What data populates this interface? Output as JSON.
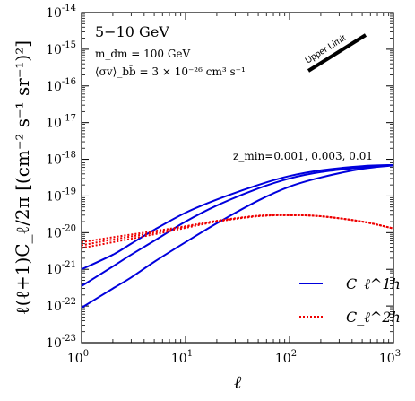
{
  "chart_data": {
    "type": "line",
    "title": "5−10 GeV",
    "xlabel": "ℓ",
    "ylabel": "ℓ(ℓ+1)C_ℓ/2π [(cm⁻² s⁻¹ sr⁻¹)²]",
    "xscale": "log",
    "yscale": "log",
    "xlim": [
      1,
      1000
    ],
    "ylim": [
      1e-23,
      1e-14
    ],
    "x_ticks": [
      {
        "value": 1,
        "base": "10",
        "exp": "0"
      },
      {
        "value": 10,
        "base": "10",
        "exp": "1"
      },
      {
        "value": 100,
        "base": "10",
        "exp": "2"
      },
      {
        "value": 1000,
        "base": "10",
        "exp": "3"
      }
    ],
    "y_ticks": [
      {
        "value": 1e-23,
        "base": "10",
        "exp": "-23"
      },
      {
        "value": 1e-22,
        "base": "10",
        "exp": "-22"
      },
      {
        "value": 1e-21,
        "base": "10",
        "exp": "-21"
      },
      {
        "value": 1e-20,
        "base": "10",
        "exp": "-20"
      },
      {
        "value": 1e-19,
        "base": "10",
        "exp": "-19"
      },
      {
        "value": 1e-18,
        "base": "10",
        "exp": "-18"
      },
      {
        "value": 1e-17,
        "base": "10",
        "exp": "-17"
      },
      {
        "value": 1e-16,
        "base": "10",
        "exp": "-16"
      },
      {
        "value": 1e-15,
        "base": "10",
        "exp": "-15"
      },
      {
        "value": 1e-14,
        "base": "10",
        "exp": "-14"
      }
    ],
    "annotations": {
      "mass": "m_dm = 100 GeV",
      "cross_section": "⟨σv⟩_bb̄ = 3 × 10⁻²⁶ cm³ s⁻¹",
      "zmin": "z_min=0.001, 0.003, 0.01",
      "upper_limit": "Upper Limit"
    },
    "legend": {
      "placement": "bottom-right",
      "entries": [
        {
          "label": "C_ℓ^1h",
          "color": "#0000dd",
          "style": "solid"
        },
        {
          "label": "C_ℓ^2h",
          "color": "#ee0000",
          "style": "dotted"
        }
      ]
    },
    "series": [
      {
        "group": "1h",
        "color": "#0000dd",
        "style": "solid",
        "x": [
          1,
          2,
          3,
          5,
          10,
          20,
          50,
          100,
          200,
          500,
          1000
        ],
        "y": [
          1e-21,
          2.5e-21,
          5e-21,
          1.2e-20,
          3.5e-20,
          8e-20,
          2e-19,
          3.5e-19,
          5e-19,
          6.5e-19,
          7e-19
        ]
      },
      {
        "group": "1h",
        "color": "#0000dd",
        "style": "solid",
        "x": [
          1,
          2,
          3,
          5,
          10,
          20,
          50,
          100,
          200,
          500,
          1000
        ],
        "y": [
          3.5e-22,
          1.2e-21,
          2.5e-21,
          6e-21,
          2e-20,
          5.5e-20,
          1.6e-19,
          3e-19,
          4.5e-19,
          6e-19,
          7e-19
        ]
      },
      {
        "group": "1h",
        "color": "#0000dd",
        "style": "solid",
        "x": [
          1,
          2,
          3,
          5,
          10,
          20,
          50,
          100,
          200,
          500,
          1000
        ],
        "y": [
          9e-23,
          3e-22,
          6e-22,
          1.6e-21,
          5.5e-21,
          1.8e-20,
          7.5e-20,
          1.8e-19,
          3.2e-19,
          5.5e-19,
          6.8e-19
        ]
      },
      {
        "group": "2h",
        "color": "#ee0000",
        "style": "dotted",
        "x": [
          1,
          2,
          5,
          10,
          20,
          50,
          100,
          200,
          500,
          1000
        ],
        "y": [
          5.5e-21,
          7.5e-21,
          1.1e-20,
          1.5e-20,
          2.1e-20,
          2.9e-20,
          3e-20,
          2.8e-20,
          2e-20,
          1.3e-20
        ]
      },
      {
        "group": "2h",
        "color": "#ee0000",
        "style": "dotted",
        "x": [
          1,
          2,
          5,
          10,
          20,
          50,
          100,
          200,
          500,
          1000
        ],
        "y": [
          4.5e-21,
          6.5e-21,
          1e-20,
          1.45e-20,
          2.05e-20,
          2.85e-20,
          3e-20,
          2.8e-20,
          2e-20,
          1.3e-20
        ]
      },
      {
        "group": "2h",
        "color": "#ee0000",
        "style": "dotted",
        "x": [
          1,
          2,
          5,
          10,
          20,
          50,
          100,
          200,
          500,
          1000
        ],
        "y": [
          3.8e-21,
          5.5e-21,
          9e-21,
          1.35e-20,
          2e-20,
          2.8e-20,
          3e-20,
          2.8e-20,
          2e-20,
          1.3e-20
        ]
      }
    ],
    "grid": false
  }
}
